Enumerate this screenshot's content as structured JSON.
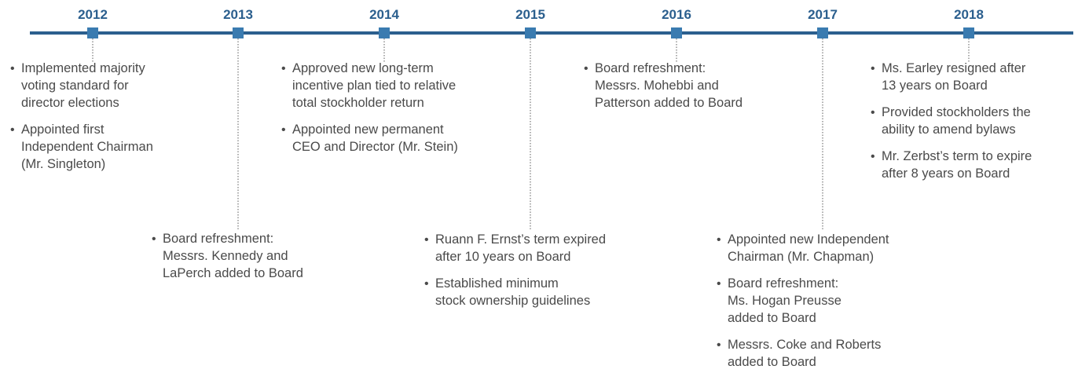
{
  "timeline": [
    {
      "year": "2012",
      "items": [
        [
          "Implemented majority",
          "voting standard for",
          "director elections"
        ],
        [
          "Appointed first",
          "Independent Chairman",
          "(Mr. Singleton)"
        ]
      ]
    },
    {
      "year": "2013",
      "items": [
        [
          "Board refreshment:",
          "Messrs. Kennedy and",
          "LaPerch added to Board"
        ]
      ]
    },
    {
      "year": "2014",
      "items": [
        [
          "Approved new long-term",
          "incentive plan tied to relative",
          "total stockholder return"
        ],
        [
          "Appointed new permanent",
          "CEO and Director (Mr. Stein)"
        ]
      ]
    },
    {
      "year": "2015",
      "items": [
        [
          "Ruann F. Ernst’s term expired",
          "after 10 years on Board"
        ],
        [
          "Established minimum",
          "stock ownership guidelines"
        ]
      ]
    },
    {
      "year": "2016",
      "items": [
        [
          "Board refreshment:",
          "Messrs. Mohebbi and",
          "Patterson added to Board"
        ]
      ]
    },
    {
      "year": "2017",
      "items": [
        [
          "Appointed new Independent",
          "Chairman (Mr. Chapman)"
        ],
        [
          "Board refreshment:",
          "Ms. Hogan Preusse",
          "added to Board"
        ],
        [
          "Messrs. Coke and Roberts",
          "added to Board"
        ]
      ]
    },
    {
      "year": "2018",
      "items": [
        [
          "Ms. Earley resigned after",
          "13 years on Board"
        ],
        [
          "Provided stockholders the",
          "ability to amend bylaws"
        ],
        [
          "Mr. Zerbst’s term to expire",
          "after 8 years on Board"
        ]
      ]
    }
  ]
}
